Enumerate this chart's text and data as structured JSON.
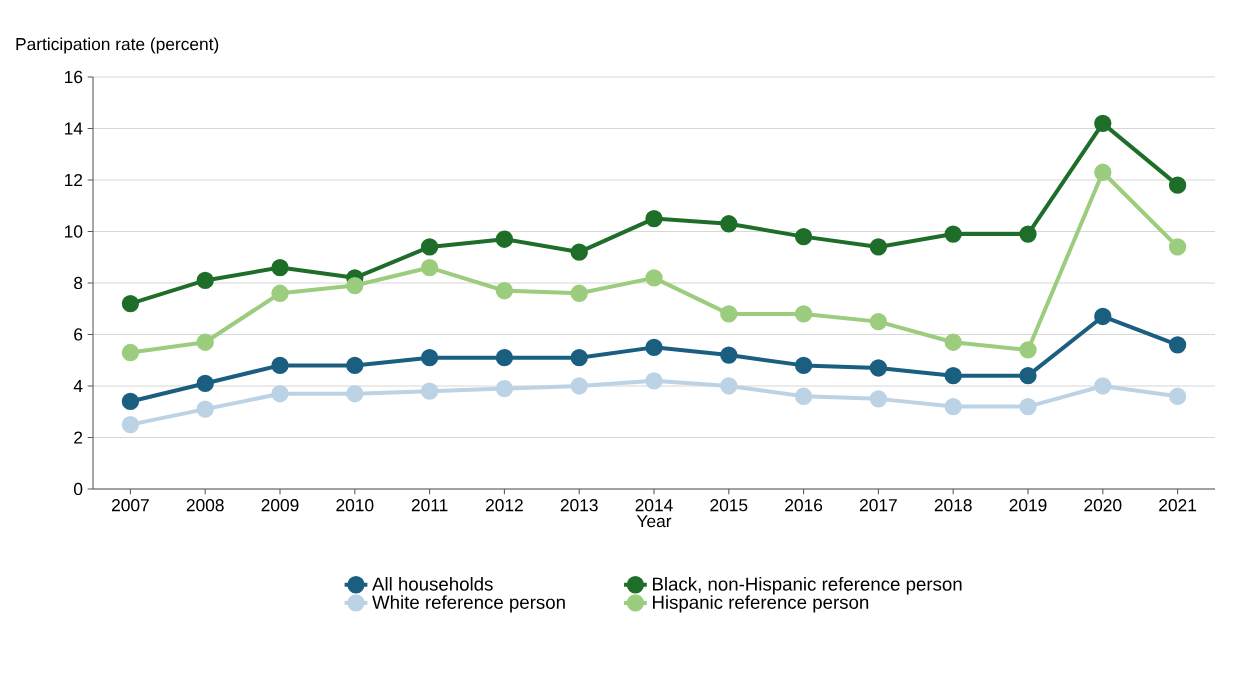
{
  "chart_data": {
    "type": "line",
    "ylabel": "Participation rate (percent)",
    "xlabel": "Year",
    "categories": [
      "2007",
      "2008",
      "2009",
      "2010",
      "2011",
      "2012",
      "2013",
      "2014",
      "2015",
      "2016",
      "2017",
      "2018",
      "2019",
      "2020",
      "2021"
    ],
    "series": [
      {
        "name": "All households",
        "color": "#1a5e80",
        "values": [
          3.4,
          4.1,
          4.8,
          4.8,
          5.1,
          5.1,
          5.1,
          5.5,
          5.2,
          4.8,
          4.7,
          4.4,
          4.4,
          6.7,
          5.6
        ]
      },
      {
        "name": "White reference person",
        "color": "#bcd3e6",
        "values": [
          2.5,
          3.1,
          3.7,
          3.7,
          3.8,
          3.9,
          4.0,
          4.2,
          4.0,
          3.6,
          3.5,
          3.2,
          3.2,
          4.0,
          3.6
        ]
      },
      {
        "name": "Black, non-Hispanic reference person",
        "color": "#1e6e2a",
        "values": [
          7.2,
          8.1,
          8.6,
          8.2,
          9.4,
          9.7,
          9.2,
          10.5,
          10.3,
          9.8,
          9.4,
          9.9,
          9.9,
          14.2,
          11.8
        ]
      },
      {
        "name": "Hispanic reference person",
        "color": "#9ccc7e",
        "values": [
          5.3,
          5.7,
          7.6,
          7.9,
          8.6,
          7.7,
          7.6,
          8.2,
          6.8,
          6.8,
          6.5,
          5.7,
          5.4,
          12.3,
          9.4
        ]
      }
    ],
    "ylim": [
      0,
      16
    ],
    "yticks": [
      0,
      2,
      4,
      6,
      8,
      10,
      12,
      14,
      16
    ],
    "grid": "y",
    "legend": "bottom",
    "marker": "circle",
    "line_style": "solid"
  }
}
